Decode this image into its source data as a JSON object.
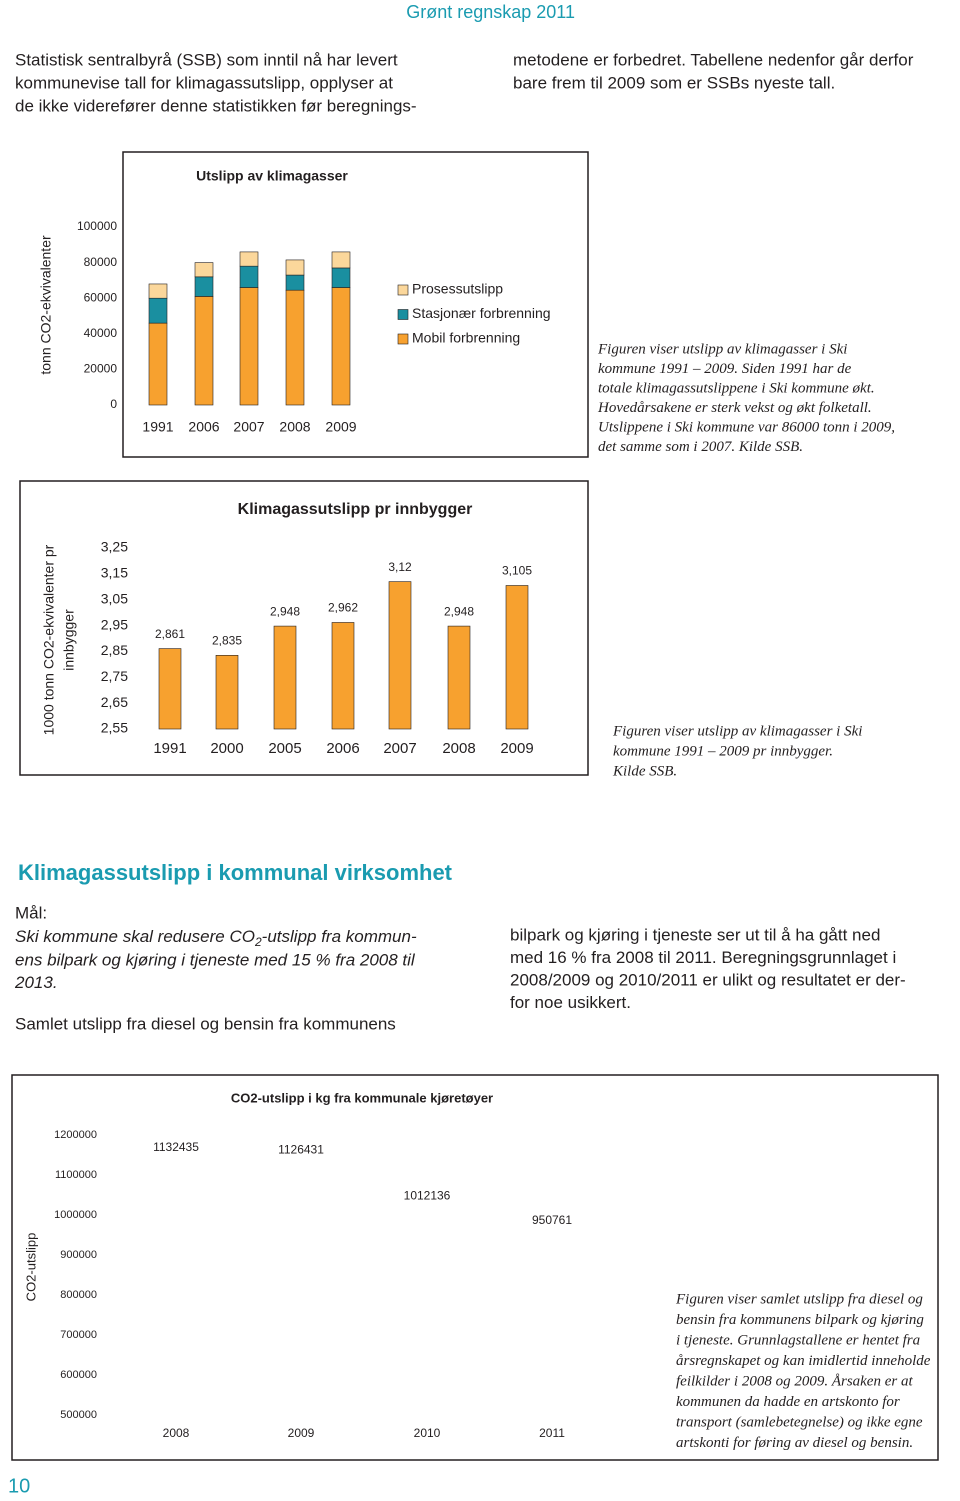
{
  "header": {
    "title": "Grønt regnskap 2011"
  },
  "intro": {
    "left": [
      "Statistisk sentralbyrå (SSB) som inntil nå har levert",
      "kommunevise tall for klimagassutslipp, opplyser at",
      "de ikke viderefører denne statistikken før beregnings-"
    ],
    "right": [
      "metodene er forbedret. Tabellene nedenfor går derfor",
      "bare frem til 2009 som er SSBs nyeste tall."
    ]
  },
  "chart_data": [
    {
      "type": "bar",
      "title": "Utslipp av klimagasser",
      "ylabel": [
        "tonn CO2-ekvivalenter"
      ],
      "categories": [
        "1991",
        "2006",
        "2007",
        "2008",
        "2009"
      ],
      "series": [
        {
          "name": "Mobil forbrenning",
          "color": "#f7a12f",
          "values": [
            46000,
            61000,
            66000,
            64500,
            66000
          ]
        },
        {
          "name": "Stasjonær forbrenning",
          "color": "#1a8fa0",
          "values": [
            14000,
            11000,
            12000,
            8500,
            11000
          ]
        },
        {
          "name": "Prosessutslipp",
          "color": "#fbd79b",
          "values": [
            8000,
            8000,
            8000,
            8500,
            9000
          ]
        }
      ],
      "stacked": true,
      "ylim": [
        0,
        100000
      ],
      "yticks": [
        0,
        20000,
        40000,
        60000,
        80000,
        100000
      ],
      "legend": "right"
    },
    {
      "type": "bar",
      "title": "Klimagassutslipp pr innbygger",
      "ylabel": [
        "1000 tonn CO2-ekvivalenter pr",
        "innbygger"
      ],
      "categories": [
        "1991",
        "2000",
        "2005",
        "2006",
        "2007",
        "2008",
        "2009"
      ],
      "values": [
        2.861,
        2.835,
        2.948,
        2.962,
        3.12,
        2.948,
        3.105
      ],
      "value_labels": [
        "2,861",
        "2,835",
        "2,948",
        "2,962",
        "3,12",
        "2,948",
        "3,105"
      ],
      "color": "#f7a12f",
      "ylim": [
        2.55,
        3.25
      ],
      "yticks": [
        {
          "value": 2.55,
          "label": "2,55"
        },
        {
          "value": 2.65,
          "label": "2,65"
        },
        {
          "value": 2.75,
          "label": "2,75"
        },
        {
          "value": 2.85,
          "label": "2,85"
        },
        {
          "value": 2.95,
          "label": "2,95"
        },
        {
          "value": 3.05,
          "label": "3,05"
        },
        {
          "value": 3.15,
          "label": "3,15"
        },
        {
          "value": 3.25,
          "label": "3,25"
        }
      ]
    },
    {
      "type": "bar",
      "title": "CO2-utslipp i kg fra kommunale kjøretøyer",
      "ylabel": [
        "CO2-utslipp"
      ],
      "categories": [
        "2008",
        "2009",
        "2010",
        "2011"
      ],
      "values": [
        1132435,
        1126431,
        1012136,
        950761
      ],
      "show_values": true,
      "color": "#ffffff",
      "ylim": [
        500000,
        1200000
      ],
      "yticks": [
        500000,
        600000,
        700000,
        800000,
        900000,
        1000000,
        1100000,
        1200000
      ]
    }
  ],
  "captions": [
    [
      "Figuren viser utslipp av klimagasser i Ski",
      "kommune 1991 – 2009. Siden 1991 har de",
      "totale klimagassutslippene i Ski kommune økt.",
      "Hovedårsakene er sterk vekst og økt folketall.",
      "Utslippene i Ski kommune var 86000 tonn i 2009,",
      "det samme som i 2007. Kilde SSB."
    ],
    [
      "Figuren viser utslipp av klimagasser i Ski",
      "kommune 1991 – 2009 pr innbygger.",
      "Kilde SSB."
    ],
    [
      "Figuren viser samlet utslipp fra diesel og",
      "bensin fra kommunens bilpark og kjøring",
      "i tjeneste. Grunnlagstallene er hentet fra",
      "årsregnskapet og kan imidlertid inneholde",
      "feilkilder i 2008 og 2009. Årsaken er at",
      "kommunen da hadde en artskonto for",
      "transport (samlebetegnelse) og ikke egne",
      "artskonti for føring av diesel og bensin."
    ]
  ],
  "section": {
    "title": "Klimagassutslipp i kommunal virksomhet",
    "goal_label": "Mål:",
    "goal_first": {
      "before": "Ski kommune skal redusere CO",
      "sub": "2",
      "after": "-utslipp fra kommun-"
    },
    "goal_lines": [
      "ens bilpark og kjøring i tjeneste med 15 % fra 2008 til",
      "2013."
    ],
    "body_left": [
      "Samlet utslipp fra diesel og bensin fra kommunens"
    ],
    "body_right": [
      "bilpark og kjøring i tjeneste ser ut til å ha gått ned",
      "med 16 % fra 2008 til 2011. Beregningsgrunnlaget i",
      "2008/2009 og 2010/2011 er ulikt og resultatet er der-",
      "for noe usikkert."
    ]
  },
  "page_number": "10"
}
